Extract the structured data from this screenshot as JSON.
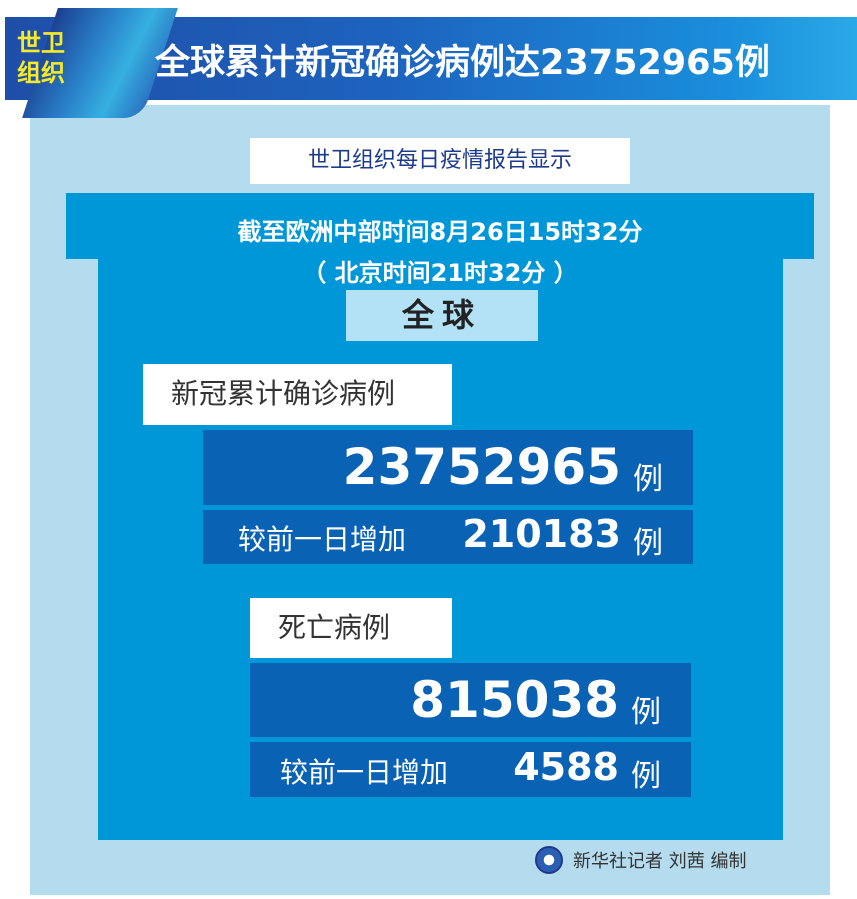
{
  "header": {
    "badge": "世卫组织",
    "title": "全球累计新冠确诊病例达23752965例"
  },
  "subtitle": "世卫组织每日疫情报告显示",
  "time": {
    "cet": "截至欧洲中部时间8月26日15时32分",
    "beijing": "（ 北京时间21时32分 ）"
  },
  "scope": "全球",
  "confirmed": {
    "label": "新冠累计确诊病例",
    "total": "23752965",
    "unit": "例",
    "increase_label": "较前一日增加",
    "increase": "210183"
  },
  "deaths": {
    "label": "死亡病例",
    "total": "815038",
    "unit": "例",
    "increase_label": "较前一日增加",
    "increase": "4588"
  },
  "credit": {
    "text": "新华社记者 刘茜 编制",
    "logo": "xinhua-logo"
  },
  "colors": {
    "banner": "#1d63be",
    "accent_blue": "#0097d8",
    "dark_blue": "#0a62b5",
    "panel": "#b4dcee",
    "badge_yellow": "#f6ea2a"
  }
}
